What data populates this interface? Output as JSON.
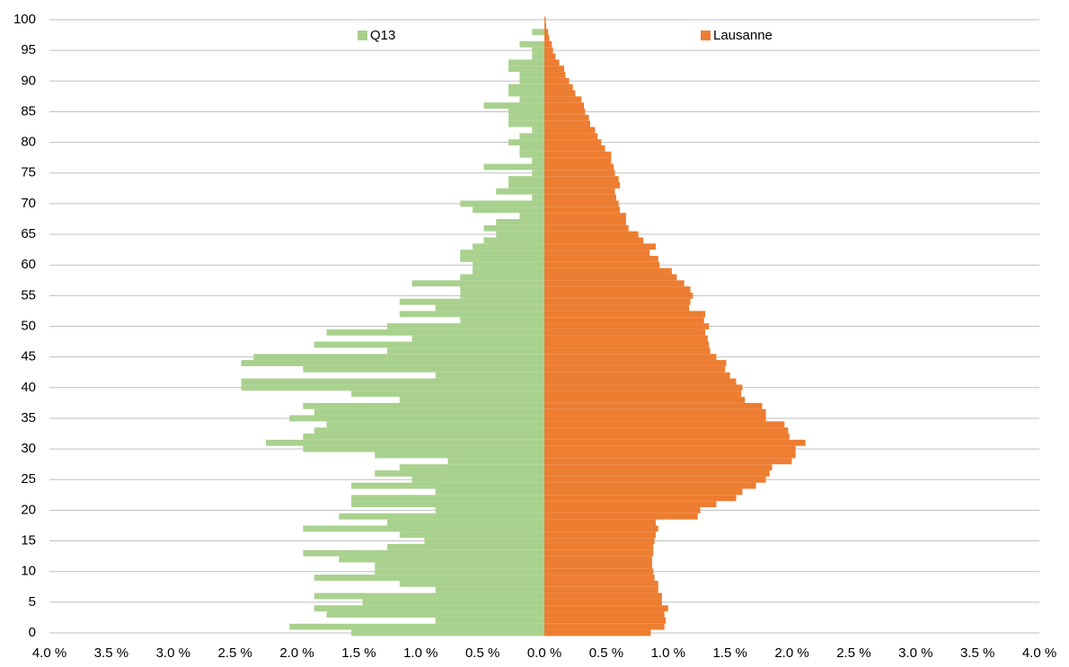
{
  "chart_data": {
    "type": "pyramid",
    "y": [
      0,
      1,
      2,
      3,
      4,
      5,
      6,
      7,
      8,
      9,
      10,
      11,
      12,
      13,
      14,
      15,
      16,
      17,
      18,
      19,
      20,
      21,
      22,
      23,
      24,
      25,
      26,
      27,
      28,
      29,
      30,
      31,
      32,
      33,
      34,
      35,
      36,
      37,
      38,
      39,
      40,
      41,
      42,
      43,
      44,
      45,
      46,
      47,
      48,
      49,
      50,
      51,
      52,
      53,
      54,
      55,
      56,
      57,
      58,
      59,
      60,
      61,
      62,
      63,
      64,
      65,
      66,
      67,
      68,
      69,
      70,
      71,
      72,
      73,
      74,
      75,
      76,
      77,
      78,
      79,
      80,
      81,
      82,
      83,
      84,
      85,
      86,
      87,
      88,
      89,
      90,
      91,
      92,
      93,
      94,
      95,
      96,
      97,
      98,
      99,
      100
    ],
    "series": [
      {
        "name": "Q13",
        "color": "#a9d18e",
        "values": [
          -1.56,
          -2.06,
          -0.88,
          -1.76,
          -1.86,
          -1.47,
          -1.86,
          -0.88,
          -1.17,
          -1.86,
          -1.37,
          -1.37,
          -1.66,
          -1.95,
          -1.27,
          -0.97,
          -1.17,
          -1.95,
          -1.27,
          -1.66,
          -0.88,
          -1.56,
          -1.56,
          -0.88,
          -1.56,
          -1.07,
          -1.37,
          -1.17,
          -0.78,
          -1.37,
          -1.95,
          -2.25,
          -1.95,
          -1.86,
          -1.76,
          -2.06,
          -1.86,
          -1.95,
          -1.17,
          -1.56,
          -2.45,
          -2.45,
          -0.88,
          -1.95,
          -2.45,
          -2.35,
          -1.27,
          -1.86,
          -1.07,
          -1.76,
          -1.27,
          -0.68,
          -1.17,
          -0.88,
          -1.17,
          -0.68,
          -0.68,
          -1.07,
          -0.68,
          -0.58,
          -0.58,
          -0.68,
          -0.68,
          -0.58,
          -0.49,
          -0.39,
          -0.49,
          -0.39,
          -0.2,
          -0.58,
          -0.68,
          -0.1,
          -0.39,
          -0.29,
          -0.29,
          -0.1,
          -0.49,
          -0.1,
          -0.2,
          -0.2,
          -0.29,
          -0.2,
          -0.1,
          -0.29,
          -0.29,
          -0.29,
          -0.49,
          -0.2,
          -0.29,
          -0.29,
          -0.2,
          -0.2,
          -0.29,
          -0.29,
          -0.1,
          -0.1,
          -0.2,
          0,
          -0.1,
          0,
          0
        ]
      },
      {
        "name": "Lausanne",
        "color": "#ed7d31",
        "values": [
          0.86,
          0.97,
          0.98,
          0.97,
          1.0,
          0.95,
          0.95,
          0.92,
          0.92,
          0.89,
          0.88,
          0.87,
          0.87,
          0.88,
          0.88,
          0.89,
          0.9,
          0.92,
          0.9,
          1.24,
          1.26,
          1.39,
          1.55,
          1.6,
          1.71,
          1.79,
          1.82,
          1.84,
          2.0,
          2.03,
          2.03,
          2.11,
          1.98,
          1.97,
          1.94,
          1.79,
          1.79,
          1.76,
          1.62,
          1.59,
          1.6,
          1.55,
          1.5,
          1.46,
          1.47,
          1.39,
          1.34,
          1.33,
          1.32,
          1.3,
          1.33,
          1.29,
          1.3,
          1.17,
          1.18,
          1.2,
          1.18,
          1.13,
          1.07,
          1.03,
          0.93,
          0.92,
          0.85,
          0.9,
          0.8,
          0.76,
          0.68,
          0.66,
          0.66,
          0.61,
          0.6,
          0.58,
          0.57,
          0.61,
          0.6,
          0.57,
          0.56,
          0.54,
          0.54,
          0.49,
          0.46,
          0.43,
          0.41,
          0.37,
          0.36,
          0.33,
          0.32,
          0.3,
          0.25,
          0.23,
          0.2,
          0.17,
          0.16,
          0.12,
          0.09,
          0.07,
          0.06,
          0.04,
          0.03,
          0.015,
          0.01
        ]
      }
    ],
    "xlim": [
      -4,
      4
    ],
    "xticks": [
      {
        "value": -4,
        "label": "4.0 %"
      },
      {
        "value": -3.5,
        "label": "3.5 %"
      },
      {
        "value": -3,
        "label": "3.0 %"
      },
      {
        "value": -2.5,
        "label": "2.5 %"
      },
      {
        "value": -2,
        "label": "2.0 %"
      },
      {
        "value": -1.5,
        "label": "1.5 %"
      },
      {
        "value": -1,
        "label": "1.0 %"
      },
      {
        "value": -0.5,
        "label": "0.5 %"
      },
      {
        "value": 0,
        "label": "0.0 %"
      },
      {
        "value": 0.5,
        "label": "0.5 %"
      },
      {
        "value": 1,
        "label": "1.0 %"
      },
      {
        "value": 1.5,
        "label": "1.5 %"
      },
      {
        "value": 2,
        "label": "2.0 %"
      },
      {
        "value": 2.5,
        "label": "2.5 %"
      },
      {
        "value": 3,
        "label": "3.0 %"
      },
      {
        "value": 3.5,
        "label": "3.5 %"
      },
      {
        "value": 4,
        "label": "4.0 %"
      }
    ],
    "ylim": [
      0,
      100
    ],
    "yticks": [
      0,
      5,
      10,
      15,
      20,
      25,
      30,
      35,
      40,
      45,
      50,
      55,
      60,
      65,
      70,
      75,
      80,
      85,
      90,
      95,
      100
    ],
    "grid": true
  }
}
